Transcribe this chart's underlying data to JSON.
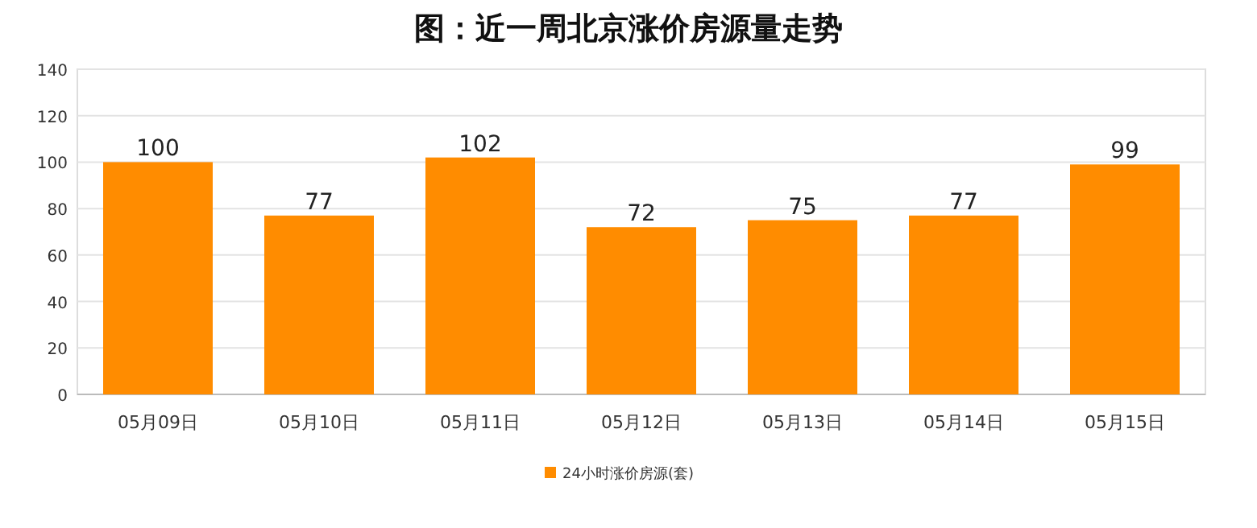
{
  "chart_data": {
    "type": "bar",
    "title": "图：近一周北京涨价房源量走势",
    "categories": [
      "05月09日",
      "05月10日",
      "05月11日",
      "05月12日",
      "05月13日",
      "05月14日",
      "05月15日"
    ],
    "series": [
      {
        "name": "24小时涨价房源(套)",
        "color": "#ff8c00",
        "values": [
          100,
          77,
          102,
          72,
          75,
          77,
          99
        ]
      }
    ],
    "ylim": [
      0,
      140
    ],
    "yticks": [
      0,
      20,
      40,
      60,
      80,
      100,
      120,
      140
    ],
    "grid": "y",
    "legend": "bottom",
    "data_labels": true
  }
}
